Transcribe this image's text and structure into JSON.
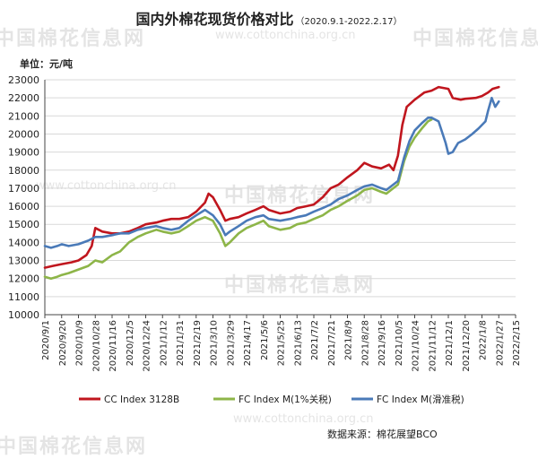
{
  "title": "国内外棉花现货价格对比",
  "subtitle": "（2020.9.1-2022.2.17）",
  "unit_label": "单位：元/吨",
  "source": "数据来源：棉花展望BCO",
  "watermark": {
    "cn": "中国棉花信息网",
    "url": "www.cottonchina.org.cn"
  },
  "chart_data": {
    "type": "line",
    "title": "国内外棉花现货价格对比",
    "subtitle": "（2020.9.1-2022.2.17）",
    "ylabel": "单位：元/吨",
    "xlabel": "",
    "ylim": [
      10000,
      23000
    ],
    "yticks": [
      10000,
      11000,
      12000,
      13000,
      14000,
      15000,
      16000,
      17000,
      18000,
      19000,
      20000,
      21000,
      22000,
      23000
    ],
    "xlim": [
      "2020-09-01",
      "2022-02-15"
    ],
    "xticks": [
      "2020/9/1",
      "2020/9/20",
      "2020/10/9",
      "2020/10/28",
      "2020/11/16",
      "2020/12/5",
      "2020/12/24",
      "2021/1/12",
      "2021/1/31",
      "2021/2/19",
      "2021/3/10",
      "2021/3/29",
      "2021/4/17",
      "2021/5/6",
      "2021/5/25",
      "2021/6/13",
      "2021/7/2",
      "2021/7/21",
      "2021/8/9",
      "2021/8/28",
      "2021/9/16",
      "2021/10/5",
      "2021/10/24",
      "2021/11/12",
      "2021/12/1",
      "2021/12/20",
      "2022/1/8",
      "2022/1/27",
      "2022/2/15"
    ],
    "grid": true,
    "legend_position": "bottom",
    "series": [
      {
        "name": "CC Index 3128B",
        "color": "#c0161e",
        "points": [
          [
            "2020-09-01",
            12600
          ],
          [
            "2020-09-10",
            12700
          ],
          [
            "2020-09-20",
            12800
          ],
          [
            "2020-10-01",
            12900
          ],
          [
            "2020-10-09",
            13000
          ],
          [
            "2020-10-18",
            13300
          ],
          [
            "2020-10-24",
            13800
          ],
          [
            "2020-10-28",
            14800
          ],
          [
            "2020-11-05",
            14600
          ],
          [
            "2020-11-16",
            14500
          ],
          [
            "2020-11-25",
            14500
          ],
          [
            "2020-12-05",
            14600
          ],
          [
            "2020-12-15",
            14800
          ],
          [
            "2020-12-24",
            15000
          ],
          [
            "2021-01-05",
            15100
          ],
          [
            "2021-01-12",
            15200
          ],
          [
            "2021-01-22",
            15300
          ],
          [
            "2021-01-31",
            15300
          ],
          [
            "2021-02-10",
            15400
          ],
          [
            "2021-02-19",
            15700
          ],
          [
            "2021-03-01",
            16200
          ],
          [
            "2021-03-05",
            16700
          ],
          [
            "2021-03-10",
            16500
          ],
          [
            "2021-03-18",
            15800
          ],
          [
            "2021-03-24",
            15200
          ],
          [
            "2021-03-29",
            15300
          ],
          [
            "2021-04-08",
            15400
          ],
          [
            "2021-04-17",
            15600
          ],
          [
            "2021-04-27",
            15800
          ],
          [
            "2021-05-06",
            16000
          ],
          [
            "2021-05-12",
            15800
          ],
          [
            "2021-05-25",
            15600
          ],
          [
            "2021-06-05",
            15700
          ],
          [
            "2021-06-13",
            15900
          ],
          [
            "2021-06-23",
            16000
          ],
          [
            "2021-07-02",
            16100
          ],
          [
            "2021-07-12",
            16500
          ],
          [
            "2021-07-21",
            17000
          ],
          [
            "2021-07-30",
            17200
          ],
          [
            "2021-08-09",
            17600
          ],
          [
            "2021-08-20",
            18000
          ],
          [
            "2021-08-28",
            18400
          ],
          [
            "2021-09-06",
            18200
          ],
          [
            "2021-09-16",
            18100
          ],
          [
            "2021-09-25",
            18300
          ],
          [
            "2021-09-30",
            18000
          ],
          [
            "2021-10-05",
            18800
          ],
          [
            "2021-10-10",
            20500
          ],
          [
            "2021-10-15",
            21500
          ],
          [
            "2021-10-24",
            21900
          ],
          [
            "2021-11-04",
            22300
          ],
          [
            "2021-11-12",
            22400
          ],
          [
            "2021-11-20",
            22600
          ],
          [
            "2021-12-01",
            22500
          ],
          [
            "2021-12-06",
            22000
          ],
          [
            "2021-12-15",
            21900
          ],
          [
            "2021-12-20",
            21950
          ],
          [
            "2022-01-01",
            22000
          ],
          [
            "2022-01-08",
            22100
          ],
          [
            "2022-01-15",
            22300
          ],
          [
            "2022-01-20",
            22500
          ],
          [
            "2022-01-27",
            22600
          ]
        ]
      },
      {
        "name": "FC Index M(1%关税)",
        "color": "#8db548",
        "points": [
          [
            "2020-09-01",
            12100
          ],
          [
            "2020-09-08",
            12000
          ],
          [
            "2020-09-15",
            12100
          ],
          [
            "2020-09-20",
            12200
          ],
          [
            "2020-09-28",
            12300
          ],
          [
            "2020-10-09",
            12500
          ],
          [
            "2020-10-20",
            12700
          ],
          [
            "2020-10-28",
            13000
          ],
          [
            "2020-11-05",
            12900
          ],
          [
            "2020-11-16",
            13300
          ],
          [
            "2020-11-25",
            13500
          ],
          [
            "2020-12-05",
            14000
          ],
          [
            "2020-12-15",
            14300
          ],
          [
            "2020-12-24",
            14500
          ],
          [
            "2021-01-05",
            14700
          ],
          [
            "2021-01-12",
            14600
          ],
          [
            "2021-01-22",
            14500
          ],
          [
            "2021-01-31",
            14600
          ],
          [
            "2021-02-10",
            14900
          ],
          [
            "2021-02-19",
            15200
          ],
          [
            "2021-03-01",
            15400
          ],
          [
            "2021-03-10",
            15200
          ],
          [
            "2021-03-18",
            14500
          ],
          [
            "2021-03-24",
            13800
          ],
          [
            "2021-03-29",
            14000
          ],
          [
            "2021-04-08",
            14500
          ],
          [
            "2021-04-17",
            14800
          ],
          [
            "2021-04-27",
            15000
          ],
          [
            "2021-05-06",
            15200
          ],
          [
            "2021-05-12",
            14900
          ],
          [
            "2021-05-25",
            14700
          ],
          [
            "2021-06-05",
            14800
          ],
          [
            "2021-06-13",
            15000
          ],
          [
            "2021-06-23",
            15100
          ],
          [
            "2021-07-02",
            15300
          ],
          [
            "2021-07-12",
            15500
          ],
          [
            "2021-07-21",
            15800
          ],
          [
            "2021-07-30",
            16000
          ],
          [
            "2021-08-09",
            16300
          ],
          [
            "2021-08-20",
            16600
          ],
          [
            "2021-08-28",
            16900
          ],
          [
            "2021-09-06",
            17000
          ],
          [
            "2021-09-16",
            16800
          ],
          [
            "2021-09-22",
            16700
          ],
          [
            "2021-10-05",
            17200
          ],
          [
            "2021-10-12",
            18500
          ],
          [
            "2021-10-18",
            19300
          ],
          [
            "2021-10-24",
            19800
          ],
          [
            "2021-11-01",
            20300
          ],
          [
            "2021-11-08",
            20700
          ],
          [
            "2021-11-12",
            20800
          ]
        ]
      },
      {
        "name": "FC Index M(滑准税)",
        "color": "#4a7ab8",
        "points": [
          [
            "2020-09-01",
            13800
          ],
          [
            "2020-09-08",
            13700
          ],
          [
            "2020-09-15",
            13800
          ],
          [
            "2020-09-20",
            13900
          ],
          [
            "2020-09-28",
            13800
          ],
          [
            "2020-10-09",
            13900
          ],
          [
            "2020-10-20",
            14100
          ],
          [
            "2020-10-28",
            14300
          ],
          [
            "2020-11-05",
            14300
          ],
          [
            "2020-11-16",
            14400
          ],
          [
            "2020-11-25",
            14500
          ],
          [
            "2020-12-05",
            14500
          ],
          [
            "2020-12-15",
            14700
          ],
          [
            "2020-12-24",
            14800
          ],
          [
            "2021-01-05",
            14900
          ],
          [
            "2021-01-12",
            14800
          ],
          [
            "2021-01-22",
            14700
          ],
          [
            "2021-01-31",
            14800
          ],
          [
            "2021-02-10",
            15200
          ],
          [
            "2021-02-19",
            15500
          ],
          [
            "2021-03-01",
            15800
          ],
          [
            "2021-03-10",
            15500
          ],
          [
            "2021-03-18",
            15000
          ],
          [
            "2021-03-24",
            14400
          ],
          [
            "2021-03-29",
            14600
          ],
          [
            "2021-04-08",
            14900
          ],
          [
            "2021-04-17",
            15200
          ],
          [
            "2021-04-27",
            15400
          ],
          [
            "2021-05-06",
            15500
          ],
          [
            "2021-05-12",
            15300
          ],
          [
            "2021-05-25",
            15200
          ],
          [
            "2021-06-05",
            15300
          ],
          [
            "2021-06-13",
            15400
          ],
          [
            "2021-06-23",
            15500
          ],
          [
            "2021-07-02",
            15700
          ],
          [
            "2021-07-12",
            15900
          ],
          [
            "2021-07-21",
            16100
          ],
          [
            "2021-07-30",
            16400
          ],
          [
            "2021-08-09",
            16600
          ],
          [
            "2021-08-20",
            16900
          ],
          [
            "2021-08-28",
            17100
          ],
          [
            "2021-09-06",
            17200
          ],
          [
            "2021-09-16",
            17000
          ],
          [
            "2021-09-22",
            16900
          ],
          [
            "2021-10-05",
            17400
          ],
          [
            "2021-10-12",
            18700
          ],
          [
            "2021-10-18",
            19600
          ],
          [
            "2021-10-24",
            20200
          ],
          [
            "2021-11-01",
            20600
          ],
          [
            "2021-11-08",
            20900
          ],
          [
            "2021-11-12",
            20900
          ],
          [
            "2021-11-20",
            20700
          ],
          [
            "2021-11-28",
            19500
          ],
          [
            "2021-12-01",
            18900
          ],
          [
            "2021-12-06",
            19000
          ],
          [
            "2021-12-12",
            19500
          ],
          [
            "2021-12-20",
            19700
          ],
          [
            "2021-12-28",
            20000
          ],
          [
            "2022-01-04",
            20300
          ],
          [
            "2022-01-08",
            20500
          ],
          [
            "2022-01-12",
            20700
          ],
          [
            "2022-01-15",
            21300
          ],
          [
            "2022-01-19",
            22000
          ],
          [
            "2022-01-23",
            21500
          ],
          [
            "2022-01-27",
            21800
          ]
        ]
      }
    ]
  }
}
